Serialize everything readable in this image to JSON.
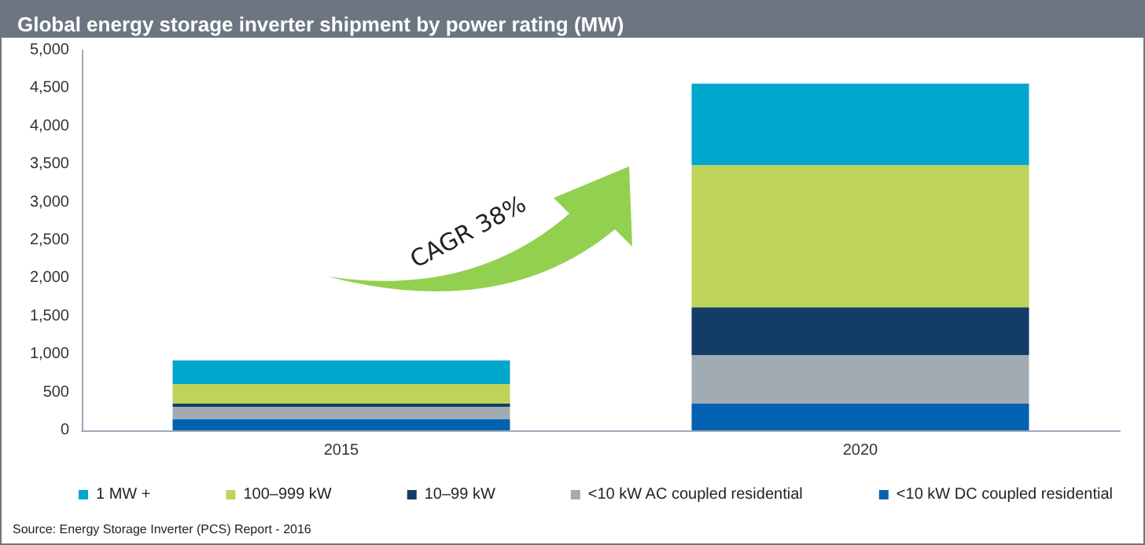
{
  "chart_data": {
    "type": "bar",
    "title": "Global energy storage inverter shipment by power rating (MW)",
    "categories": [
      "2015",
      "2020"
    ],
    "stacked": true,
    "ylim": [
      0,
      5000
    ],
    "yticks": [
      0,
      500,
      {
        "value": 1000,
        "label": "1,000"
      },
      {
        "value": 1500,
        "label": "1,500"
      },
      {
        "value": 2000,
        "label": "2,000"
      },
      {
        "value": 2500,
        "label": "2,500"
      },
      {
        "value": 3000,
        "label": "3,000"
      },
      {
        "value": 3500,
        "label": "3,500"
      },
      {
        "value": 4000,
        "label": "4,000"
      },
      {
        "value": 4500,
        "label": "4,500"
      },
      {
        "value": 5000,
        "label": "5,000"
      }
    ],
    "grid": false,
    "legend": "bottom",
    "series": [
      {
        "name": "<10 kW DC coupled residential",
        "color": "#0062b1",
        "values": [
          150,
          350
        ]
      },
      {
        "name": "<10 kW AC coupled residential",
        "color": "#a2abb1",
        "values": [
          160,
          640
        ]
      },
      {
        "name": "10–99 kW",
        "color": "#133d67",
        "values": [
          40,
          630
        ]
      },
      {
        "name": "100–999 kW",
        "color": "#bed35a",
        "values": [
          260,
          1870
        ]
      },
      {
        "name": "1 MW +",
        "color": "#00a7cc",
        "values": [
          310,
          1070
        ]
      }
    ],
    "annotations": [
      "CAGR 38%",
      "Source: Energy Storage Inverter (PCS) Report - 2016"
    ]
  }
}
